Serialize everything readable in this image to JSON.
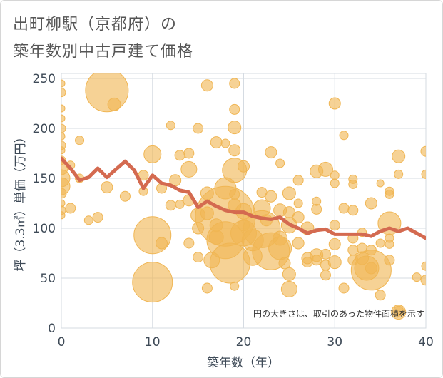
{
  "title": {
    "line1": "出町柳駅（京都府）の",
    "line2": "築年数別中古戸建て価格"
  },
  "note": "円の大きさは、取引のあった物件面積を示す",
  "colors": {
    "bubble": "#f0b654",
    "trend": "#d46a50",
    "grid": "#d5dbe2",
    "axis": "#3e4a57"
  },
  "chart_data": {
    "type": "scatter",
    "xlabel": "築年数（年）",
    "ylabel": "坪（3.3㎡）単価（万円）",
    "xlim": [
      0,
      40
    ],
    "ylim": [
      0,
      255
    ],
    "xticks": [
      0,
      10,
      20,
      30,
      40
    ],
    "yticks": [
      0,
      50,
      100,
      150,
      200,
      250
    ],
    "grid": true,
    "trend": {
      "x": [
        0,
        1,
        2,
        3,
        4,
        5,
        6,
        7,
        8,
        9,
        10,
        11,
        12,
        13,
        14,
        15,
        16,
        17,
        18,
        19,
        20,
        21,
        22,
        23,
        24,
        25,
        26,
        27,
        28,
        29,
        30,
        31,
        32,
        33,
        34,
        35,
        36,
        37,
        38,
        39,
        40
      ],
      "y": [
        170,
        160,
        148,
        151,
        160,
        151,
        159,
        167,
        158,
        140,
        153,
        145,
        143,
        138,
        136,
        121,
        127,
        122,
        118,
        116,
        116,
        112,
        110,
        109,
        111,
        104,
        100,
        95,
        98,
        99,
        94,
        94,
        94,
        94,
        92,
        97,
        100,
        97,
        100,
        95,
        90
      ]
    },
    "bubbles": [
      {
        "x": 0,
        "y": 245,
        "s": 5
      },
      {
        "x": 0,
        "y": 236,
        "s": 6
      },
      {
        "x": 0,
        "y": 220,
        "s": 5
      },
      {
        "x": 0,
        "y": 210,
        "s": 5
      },
      {
        "x": 0,
        "y": 200,
        "s": 6
      },
      {
        "x": 0,
        "y": 192,
        "s": 5
      },
      {
        "x": 0,
        "y": 183,
        "s": 6
      },
      {
        "x": 0,
        "y": 178,
        "s": 5
      },
      {
        "x": 0,
        "y": 168,
        "s": 6
      },
      {
        "x": 0,
        "y": 160,
        "s": 9
      },
      {
        "x": 0,
        "y": 150,
        "s": 12
      },
      {
        "x": 0,
        "y": 142,
        "s": 12
      },
      {
        "x": 0,
        "y": 135,
        "s": 7
      },
      {
        "x": 0,
        "y": 125,
        "s": 5
      },
      {
        "x": 0,
        "y": 118,
        "s": 6
      },
      {
        "x": 0,
        "y": 113,
        "s": 5
      },
      {
        "x": 1,
        "y": 163,
        "s": 6
      },
      {
        "x": 1,
        "y": 120,
        "s": 7
      },
      {
        "x": 2,
        "y": 188,
        "s": 6
      },
      {
        "x": 2,
        "y": 150,
        "s": 6
      },
      {
        "x": 3,
        "y": 108,
        "s": 6
      },
      {
        "x": 4,
        "y": 111,
        "s": 7
      },
      {
        "x": 5,
        "y": 238,
        "s": 30
      },
      {
        "x": 5.8,
        "y": 224,
        "s": 9
      },
      {
        "x": 5,
        "y": 141,
        "s": 8
      },
      {
        "x": 7,
        "y": 132,
        "s": 7
      },
      {
        "x": 9,
        "y": 153,
        "s": 7
      },
      {
        "x": 9,
        "y": 137,
        "s": 6
      },
      {
        "x": 10,
        "y": 174,
        "s": 12
      },
      {
        "x": 10,
        "y": 93,
        "s": 26
      },
      {
        "x": 10,
        "y": 46,
        "s": 28
      },
      {
        "x": 11,
        "y": 140,
        "s": 7
      },
      {
        "x": 11,
        "y": 85,
        "s": 8
      },
      {
        "x": 12,
        "y": 203,
        "s": 6
      },
      {
        "x": 12,
        "y": 123,
        "s": 7
      },
      {
        "x": 12.5,
        "y": 148,
        "s": 8
      },
      {
        "x": 13,
        "y": 173,
        "s": 7
      },
      {
        "x": 13,
        "y": 124,
        "s": 6
      },
      {
        "x": 14,
        "y": 175,
        "s": 7
      },
      {
        "x": 14,
        "y": 159,
        "s": 11
      },
      {
        "x": 14,
        "y": 128,
        "s": 8
      },
      {
        "x": 14,
        "y": 85,
        "s": 7
      },
      {
        "x": 15,
        "y": 200,
        "s": 7
      },
      {
        "x": 15,
        "y": 113,
        "s": 10
      },
      {
        "x": 15,
        "y": 100,
        "s": 8
      },
      {
        "x": 15,
        "y": 71,
        "s": 7
      },
      {
        "x": 16,
        "y": 243,
        "s": 8
      },
      {
        "x": 16,
        "y": 135,
        "s": 9
      },
      {
        "x": 16,
        "y": 115,
        "s": 9
      },
      {
        "x": 16,
        "y": 40,
        "s": 7
      },
      {
        "x": 16.5,
        "y": 68,
        "s": 11
      },
      {
        "x": 17,
        "y": 186,
        "s": 8
      },
      {
        "x": 17,
        "y": 103,
        "s": 9
      },
      {
        "x": 17,
        "y": 91,
        "s": 10
      },
      {
        "x": 18,
        "y": 185,
        "s": 6
      },
      {
        "x": 18,
        "y": 140,
        "s": 15
      },
      {
        "x": 18,
        "y": 112,
        "s": 42
      },
      {
        "x": 18,
        "y": 88,
        "s": 26
      },
      {
        "x": 18.5,
        "y": 65,
        "s": 28
      },
      {
        "x": 19,
        "y": 245,
        "s": 7
      },
      {
        "x": 19,
        "y": 219,
        "s": 7
      },
      {
        "x": 19,
        "y": 201,
        "s": 9
      },
      {
        "x": 19,
        "y": 178,
        "s": 8
      },
      {
        "x": 19,
        "y": 158,
        "s": 17
      },
      {
        "x": 19,
        "y": 134,
        "s": 7
      },
      {
        "x": 19,
        "y": 123,
        "s": 9
      },
      {
        "x": 19,
        "y": 42,
        "s": 6
      },
      {
        "x": 20,
        "y": 162,
        "s": 8
      },
      {
        "x": 20,
        "y": 117,
        "s": 11
      },
      {
        "x": 20,
        "y": 103,
        "s": 8
      },
      {
        "x": 20,
        "y": 95,
        "s": 18
      },
      {
        "x": 21,
        "y": 88,
        "s": 15
      },
      {
        "x": 21,
        "y": 72,
        "s": 13
      },
      {
        "x": 22,
        "y": 136,
        "s": 7
      },
      {
        "x": 22,
        "y": 120,
        "s": 12
      },
      {
        "x": 22,
        "y": 99,
        "s": 26
      },
      {
        "x": 22.5,
        "y": 108,
        "s": 8
      },
      {
        "x": 23,
        "y": 176,
        "s": 8
      },
      {
        "x": 23,
        "y": 132,
        "s": 8
      },
      {
        "x": 23,
        "y": 77,
        "s": 26
      },
      {
        "x": 24,
        "y": 165,
        "s": 6
      },
      {
        "x": 24,
        "y": 118,
        "s": 9
      },
      {
        "x": 24,
        "y": 90,
        "s": 10
      },
      {
        "x": 24,
        "y": 80,
        "s": 16
      },
      {
        "x": 24.5,
        "y": 65,
        "s": 8
      },
      {
        "x": 25,
        "y": 135,
        "s": 9
      },
      {
        "x": 25,
        "y": 116,
        "s": 8
      },
      {
        "x": 25,
        "y": 103,
        "s": 11
      },
      {
        "x": 25,
        "y": 54,
        "s": 9
      },
      {
        "x": 25,
        "y": 39,
        "s": 11
      },
      {
        "x": 26,
        "y": 148,
        "s": 7
      },
      {
        "x": 26,
        "y": 125,
        "s": 6
      },
      {
        "x": 26,
        "y": 111,
        "s": 8
      },
      {
        "x": 26,
        "y": 85,
        "s": 8
      },
      {
        "x": 27,
        "y": 100,
        "s": 9
      },
      {
        "x": 27,
        "y": 70,
        "s": 8
      },
      {
        "x": 27,
        "y": 66,
        "s": 7
      },
      {
        "x": 28,
        "y": 157,
        "s": 9
      },
      {
        "x": 28,
        "y": 127,
        "s": 6
      },
      {
        "x": 28,
        "y": 119,
        "s": 7
      },
      {
        "x": 28,
        "y": 73,
        "s": 9
      },
      {
        "x": 28,
        "y": 68,
        "s": 7
      },
      {
        "x": 29,
        "y": 159,
        "s": 10
      },
      {
        "x": 29,
        "y": 74,
        "s": 7
      },
      {
        "x": 29,
        "y": 63,
        "s": 7
      },
      {
        "x": 29,
        "y": 53,
        "s": 7
      },
      {
        "x": 30,
        "y": 225,
        "s": 8
      },
      {
        "x": 30,
        "y": 153,
        "s": 6
      },
      {
        "x": 30,
        "y": 145,
        "s": 6
      },
      {
        "x": 30,
        "y": 103,
        "s": 7
      },
      {
        "x": 30,
        "y": 84,
        "s": 8
      },
      {
        "x": 30,
        "y": 66,
        "s": 9
      },
      {
        "x": 31,
        "y": 193,
        "s": 6
      },
      {
        "x": 31,
        "y": 120,
        "s": 7
      },
      {
        "x": 31,
        "y": 40,
        "s": 7
      },
      {
        "x": 32,
        "y": 149,
        "s": 6
      },
      {
        "x": 32,
        "y": 144,
        "s": 6
      },
      {
        "x": 32,
        "y": 118,
        "s": 7
      },
      {
        "x": 32,
        "y": 90,
        "s": 7
      },
      {
        "x": 32,
        "y": 78,
        "s": 7
      },
      {
        "x": 32,
        "y": 68,
        "s": 7
      },
      {
        "x": 33,
        "y": 96,
        "s": 6
      },
      {
        "x": 33,
        "y": 80,
        "s": 7
      },
      {
        "x": 33,
        "y": 70,
        "s": 9
      },
      {
        "x": 33.5,
        "y": 60,
        "s": 17
      },
      {
        "x": 34,
        "y": 125,
        "s": 8
      },
      {
        "x": 34,
        "y": 78,
        "s": 7
      },
      {
        "x": 34,
        "y": 58,
        "s": 28
      },
      {
        "x": 34,
        "y": 60,
        "s": 8
      },
      {
        "x": 35,
        "y": 145,
        "s": 5
      },
      {
        "x": 35,
        "y": 85,
        "s": 6
      },
      {
        "x": 35,
        "y": 33,
        "s": 7
      },
      {
        "x": 36,
        "y": 137,
        "s": 6
      },
      {
        "x": 36,
        "y": 134,
        "s": 6
      },
      {
        "x": 36,
        "y": 105,
        "s": 16
      },
      {
        "x": 36,
        "y": 90,
        "s": 6
      },
      {
        "x": 36,
        "y": 84,
        "s": 6
      },
      {
        "x": 36,
        "y": 68,
        "s": 7
      },
      {
        "x": 37,
        "y": 172,
        "s": 9
      },
      {
        "x": 37,
        "y": 154,
        "s": 6
      },
      {
        "x": 37,
        "y": 16,
        "s": 10
      },
      {
        "x": 37,
        "y": 17,
        "s": 7
      },
      {
        "x": 39,
        "y": 51,
        "s": 6
      },
      {
        "x": 40,
        "y": 177,
        "s": 7
      },
      {
        "x": 40,
        "y": 154,
        "s": 6
      },
      {
        "x": 40,
        "y": 62,
        "s": 6
      },
      {
        "x": 40,
        "y": 48,
        "s": 7
      }
    ]
  }
}
